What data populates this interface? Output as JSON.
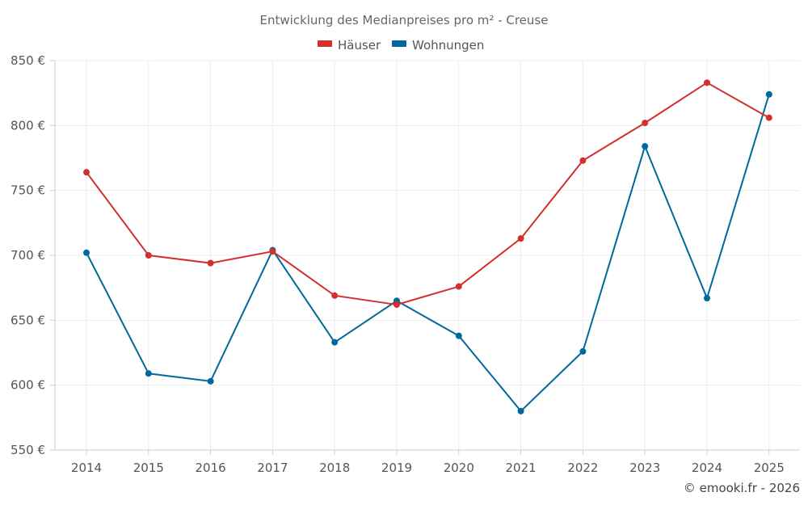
{
  "chart_data": {
    "type": "line",
    "title": "Entwicklung des Medianpreises pro m² - Creuse",
    "categories": [
      "2014",
      "2015",
      "2016",
      "2017",
      "2018",
      "2019",
      "2020",
      "2021",
      "2022",
      "2023",
      "2024",
      "2025"
    ],
    "series": [
      {
        "name": "Häuser",
        "color": "#d32f2f",
        "values": [
          764,
          700,
          694,
          703,
          669,
          662,
          676,
          713,
          773,
          802,
          833,
          806
        ]
      },
      {
        "name": "Wohnungen",
        "color": "#01689b",
        "values": [
          702,
          609,
          603,
          704,
          633,
          665,
          638,
          580,
          626,
          784,
          667,
          824
        ]
      }
    ],
    "ylim": [
      550,
      850
    ],
    "yticks": [
      550,
      600,
      650,
      700,
      750,
      800,
      850
    ],
    "y_tick_suffix": " €",
    "xlabel": "",
    "ylabel": "",
    "legend_position": "top-center",
    "grid": true
  },
  "credit": "© emooki.fr - 2026"
}
